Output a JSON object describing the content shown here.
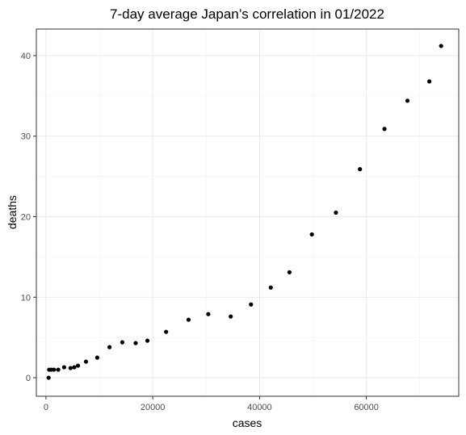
{
  "chart_data": {
    "type": "scatter",
    "title": "7-day average Japan’s correlation in 01/2022",
    "xlabel": "cases",
    "ylabel": "deaths",
    "xlim": [
      -1800,
      77300
    ],
    "ylim": [
      -2.3,
      43.3
    ],
    "x_ticks": [
      0,
      20000,
      40000,
      60000
    ],
    "x_tick_labels": [
      "0",
      "20000",
      "40000",
      "60000"
    ],
    "y_ticks": [
      0,
      10,
      20,
      30,
      40
    ],
    "y_tick_labels": [
      "0",
      "10",
      "20",
      "30",
      "40"
    ],
    "grid": true,
    "point_color": "#000000",
    "points": [
      {
        "x": 500,
        "y": 0.0
      },
      {
        "x": 600,
        "y": 1.0
      },
      {
        "x": 1000,
        "y": 1.0
      },
      {
        "x": 1500,
        "y": 1.0
      },
      {
        "x": 2300,
        "y": 1.0
      },
      {
        "x": 3400,
        "y": 1.3
      },
      {
        "x": 4600,
        "y": 1.2
      },
      {
        "x": 5300,
        "y": 1.3
      },
      {
        "x": 6000,
        "y": 1.5
      },
      {
        "x": 7500,
        "y": 2.0
      },
      {
        "x": 9600,
        "y": 2.5
      },
      {
        "x": 11900,
        "y": 3.8
      },
      {
        "x": 14300,
        "y": 4.4
      },
      {
        "x": 16800,
        "y": 4.3
      },
      {
        "x": 19000,
        "y": 4.6
      },
      {
        "x": 22500,
        "y": 5.7
      },
      {
        "x": 26700,
        "y": 7.2
      },
      {
        "x": 30400,
        "y": 7.9
      },
      {
        "x": 34600,
        "y": 7.6
      },
      {
        "x": 38400,
        "y": 9.1
      },
      {
        "x": 42100,
        "y": 11.2
      },
      {
        "x": 45600,
        "y": 13.1
      },
      {
        "x": 49800,
        "y": 17.8
      },
      {
        "x": 54300,
        "y": 20.5
      },
      {
        "x": 58800,
        "y": 25.9
      },
      {
        "x": 63400,
        "y": 30.9
      },
      {
        "x": 67700,
        "y": 34.4
      },
      {
        "x": 71800,
        "y": 36.8
      },
      {
        "x": 74000,
        "y": 41.2
      }
    ]
  }
}
